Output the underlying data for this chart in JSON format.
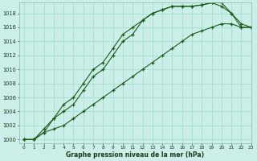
{
  "title": "Graphe pression niveau de la mer (hPa)",
  "bg_color": "#cceee8",
  "grid_color": "#99ddcc",
  "line_color": "#1a5c1a",
  "xlim": [
    -0.5,
    23
  ],
  "ylim": [
    999.5,
    1019.5
  ],
  "yticks": [
    1000,
    1002,
    1004,
    1006,
    1008,
    1010,
    1012,
    1014,
    1016,
    1018
  ],
  "xticks": [
    0,
    1,
    2,
    3,
    4,
    5,
    6,
    7,
    8,
    9,
    10,
    11,
    12,
    13,
    14,
    15,
    16,
    17,
    18,
    19,
    20,
    21,
    22,
    23
  ],
  "series1_x": [
    0,
    1,
    2,
    3,
    4,
    5,
    6,
    7,
    8,
    9,
    10,
    11,
    12,
    13,
    14,
    15,
    16,
    17,
    18,
    19,
    20,
    21,
    22,
    23
  ],
  "series1_y": [
    1000,
    1000,
    1001,
    1003,
    1005,
    1006,
    1008,
    1010,
    1011,
    1013,
    1015,
    1016,
    1017,
    1018,
    1018.5,
    1019,
    1019,
    1019,
    1019.2,
    1019.5,
    1019,
    1018,
    1016,
    1016
  ],
  "series2_x": [
    0,
    1,
    2,
    3,
    4,
    5,
    6,
    7,
    8,
    9,
    10,
    11,
    12,
    13,
    14,
    15,
    16,
    17,
    18,
    19,
    20,
    21,
    22,
    23
  ],
  "series2_y": [
    1000,
    1000,
    1001.5,
    1003,
    1004,
    1005,
    1007,
    1009,
    1010,
    1012,
    1014,
    1015,
    1017,
    1018,
    1018.5,
    1019,
    1019,
    1019,
    1019.2,
    1019.5,
    1019.5,
    1018,
    1016.5,
    1016
  ],
  "series3_x": [
    0,
    1,
    2,
    3,
    4,
    5,
    6,
    7,
    8,
    9,
    10,
    11,
    12,
    13,
    14,
    15,
    16,
    17,
    18,
    19,
    20,
    21,
    22,
    23
  ],
  "series3_y": [
    1000,
    1000,
    1001,
    1001.5,
    1002,
    1003,
    1004,
    1005,
    1006,
    1007,
    1008,
    1009,
    1010,
    1011,
    1012,
    1013,
    1014,
    1015,
    1015.5,
    1016,
    1016.5,
    1016.5,
    1016,
    1016
  ]
}
